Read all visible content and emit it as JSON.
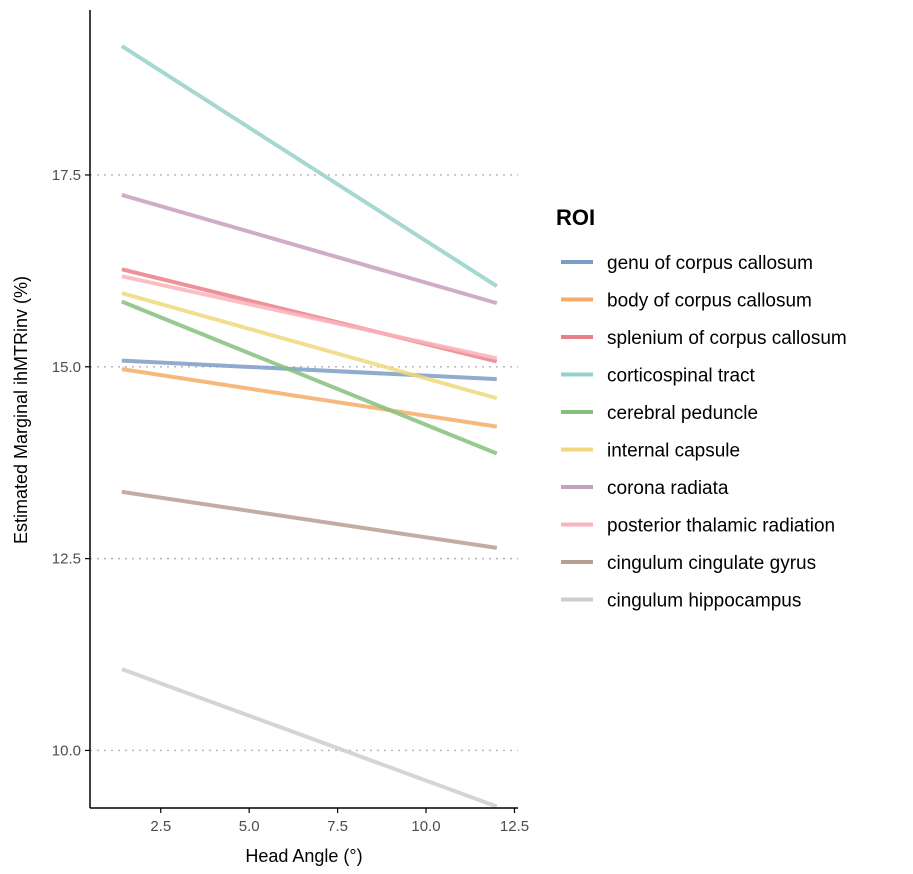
{
  "chart_data": {
    "type": "line",
    "title": "",
    "xlabel": "Head Angle (°)",
    "ylabel": "Estimated Marginal ihMTRinv (%)",
    "xlim": [
      0.5,
      12.6
    ],
    "ylim": [
      9.25,
      19.65
    ],
    "x_ticks": [
      2.5,
      5.0,
      7.5,
      10.0,
      12.5
    ],
    "x_tick_labels": [
      "2.5",
      "5.0",
      "7.5",
      "10.0",
      "12.5"
    ],
    "y_ticks": [
      10.0,
      12.5,
      15.0,
      17.5
    ],
    "y_tick_labels": [
      "10.0",
      "12.5",
      "15.0",
      "17.5"
    ],
    "grid": "horizontal dotted",
    "legend": {
      "title": "ROI",
      "position": "right"
    },
    "x": [
      1.4,
      12.0
    ],
    "series": [
      {
        "name": "genu of corpus callosum",
        "color": "#7b9dc7",
        "values": [
          15.08,
          14.84
        ]
      },
      {
        "name": "body of corpus callosum",
        "color": "#f5ab69",
        "values": [
          14.97,
          14.22
        ]
      },
      {
        "name": "splenium of corpus callosum",
        "color": "#e97f87",
        "values": [
          16.27,
          15.07
        ]
      },
      {
        "name": "corticospinal tract",
        "color": "#96d1c9",
        "values": [
          19.18,
          16.05
        ]
      },
      {
        "name": "cerebral peduncle",
        "color": "#86bf7c",
        "values": [
          15.85,
          13.87
        ]
      },
      {
        "name": "internal capsule",
        "color": "#f0d87b",
        "values": [
          15.96,
          14.59
        ]
      },
      {
        "name": "corona radiata",
        "color": "#c79fc0",
        "values": [
          17.24,
          15.83
        ]
      },
      {
        "name": "posterior thalamic radiation",
        "color": "#fbb3bb",
        "values": [
          16.18,
          15.11
        ]
      },
      {
        "name": "cingulum cingulate gyrus",
        "color": "#b99f92",
        "values": [
          13.37,
          12.64
        ]
      },
      {
        "name": "cingulum hippocampus",
        "color": "#d1cdc9",
        "values": [
          11.06,
          9.27
        ]
      }
    ]
  }
}
